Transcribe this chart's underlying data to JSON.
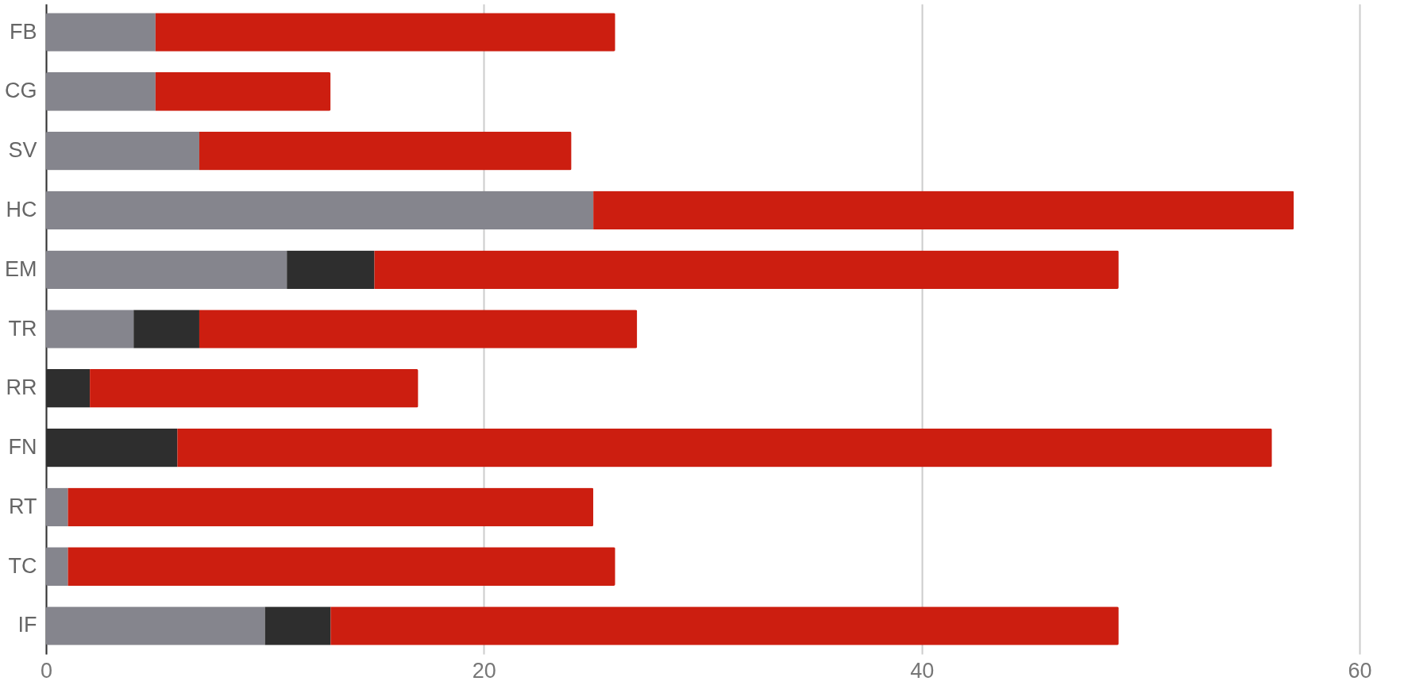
{
  "chart_data": {
    "type": "bar",
    "orientation": "horizontal",
    "stacked": true,
    "categories": [
      "FB",
      "CG",
      "SV",
      "HC",
      "EM",
      "TR",
      "RR",
      "FN",
      "RT",
      "TC",
      "IF"
    ],
    "series": [
      {
        "color": "#85858d",
        "values": [
          5,
          5,
          7,
          25,
          11,
          4,
          0,
          0,
          1,
          1,
          10
        ]
      },
      {
        "color": "#2e2e2e",
        "values": [
          0,
          0,
          0,
          0,
          4,
          3,
          2,
          6,
          0,
          0,
          3
        ]
      },
      {
        "color": "#cc1e10",
        "values": [
          21,
          8,
          17,
          32,
          34,
          20,
          15,
          50,
          24,
          25,
          36
        ]
      }
    ],
    "xlim": [
      0,
      60
    ],
    "xticks": [
      0,
      20,
      40,
      60
    ],
    "grid": "x",
    "legend": false
  }
}
